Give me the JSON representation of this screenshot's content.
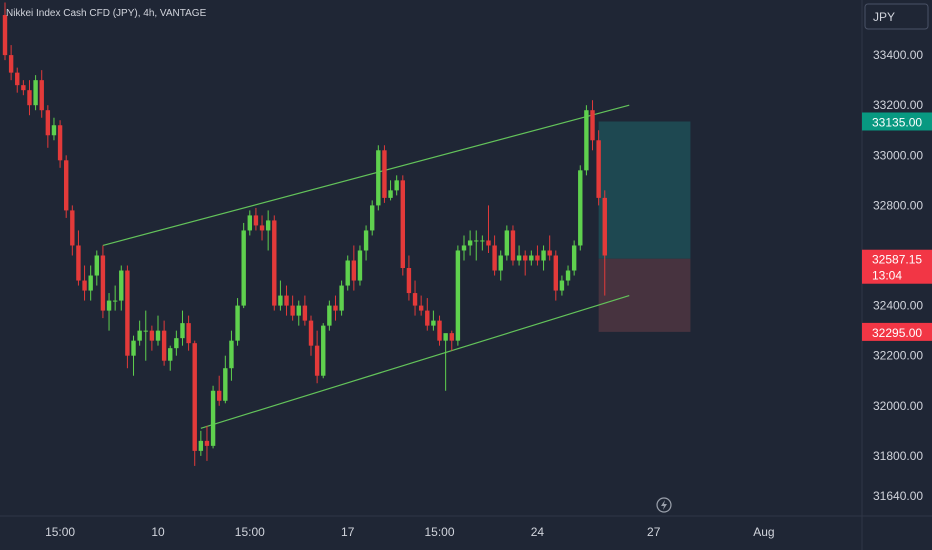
{
  "header": {
    "title": "Nikkei Index Cash CFD (JPY), 4h, VANTAGE"
  },
  "currency_button": "JPY",
  "colors": {
    "background": "#1f2635",
    "up": "#5fd14e",
    "down": "#e33a3a",
    "channel": "#63c35a",
    "target_zone": "#1f4a53",
    "stop_zone": "#4a3440",
    "tag_green": "#089981",
    "tag_red": "#f23645"
  },
  "chart_data": {
    "type": "candlestick",
    "ylim": [
      31560,
      33620
    ],
    "y_ticks": [
      33400,
      33200,
      33000,
      32800,
      32600,
      32400,
      32200,
      32000,
      31800,
      31640
    ],
    "y_tick_labels": [
      "33400.00",
      "33200.00",
      "33000.00",
      "32800.00",
      "32400.00",
      "32200.00",
      "32000.00",
      "31800.00",
      "31640.00"
    ],
    "y_tick_values": [
      33400,
      33200,
      33000,
      32800,
      32400,
      32200,
      32000,
      31800,
      31640
    ],
    "x_labels": [
      {
        "label": "15:00",
        "index": 9
      },
      {
        "label": "10",
        "index": 25
      },
      {
        "label": "15:00",
        "index": 40
      },
      {
        "label": "17",
        "index": 56
      },
      {
        "label": "15:00",
        "index": 71
      },
      {
        "label": "24",
        "index": 87
      },
      {
        "label": "27",
        "index": 106
      },
      {
        "label": "Aug",
        "index": 124
      }
    ],
    "candles": [
      [
        33560,
        33610,
        33380,
        33400
      ],
      [
        33400,
        33440,
        33300,
        33330
      ],
      [
        33330,
        33350,
        33250,
        33280
      ],
      [
        33280,
        33300,
        33240,
        33260
      ],
      [
        33260,
        33300,
        33160,
        33200
      ],
      [
        33200,
        33320,
        33180,
        33300
      ],
      [
        33300,
        33340,
        33150,
        33180
      ],
      [
        33180,
        33200,
        33030,
        33080
      ],
      [
        33080,
        33150,
        33060,
        33120
      ],
      [
        33120,
        33140,
        32950,
        32980
      ],
      [
        32980,
        33000,
        32750,
        32780
      ],
      [
        32780,
        32800,
        32600,
        32640
      ],
      [
        32640,
        32700,
        32480,
        32500
      ],
      [
        32500,
        32560,
        32420,
        32460
      ],
      [
        32460,
        32560,
        32420,
        32520
      ],
      [
        32520,
        32620,
        32480,
        32600
      ],
      [
        32600,
        32640,
        32350,
        32380
      ],
      [
        32380,
        32450,
        32300,
        32420
      ],
      [
        32420,
        32480,
        32380,
        32420
      ],
      [
        32420,
        32560,
        32380,
        32540
      ],
      [
        32540,
        32560,
        32150,
        32200
      ],
      [
        32200,
        32280,
        32120,
        32260
      ],
      [
        32260,
        32340,
        32240,
        32300
      ],
      [
        32300,
        32380,
        32180,
        32300
      ],
      [
        32300,
        32320,
        32220,
        32260
      ],
      [
        32260,
        32360,
        32240,
        32300
      ],
      [
        32300,
        32340,
        32160,
        32180
      ],
      [
        32180,
        32240,
        32140,
        32230
      ],
      [
        32230,
        32300,
        32200,
        32270
      ],
      [
        32270,
        32380,
        32240,
        32330
      ],
      [
        32330,
        32360,
        32220,
        32250
      ],
      [
        32250,
        32260,
        31760,
        31820
      ],
      [
        31820,
        31900,
        31800,
        31860
      ],
      [
        31860,
        31920,
        31780,
        31840
      ],
      [
        31840,
        32080,
        31830,
        32060
      ],
      [
        32060,
        32120,
        32000,
        32020
      ],
      [
        32020,
        32200,
        32010,
        32150
      ],
      [
        32150,
        32300,
        32100,
        32260
      ],
      [
        32260,
        32430,
        32240,
        32400
      ],
      [
        32400,
        32730,
        32390,
        32700
      ],
      [
        32700,
        32780,
        32680,
        32760
      ],
      [
        32760,
        32790,
        32700,
        32720
      ],
      [
        32720,
        32760,
        32660,
        32700
      ],
      [
        32700,
        32780,
        32620,
        32740
      ],
      [
        32740,
        32760,
        32380,
        32400
      ],
      [
        32400,
        32500,
        32380,
        32440
      ],
      [
        32440,
        32480,
        32360,
        32400
      ],
      [
        32400,
        32440,
        32340,
        32360
      ],
      [
        32360,
        32420,
        32320,
        32400
      ],
      [
        32400,
        32440,
        32320,
        32340
      ],
      [
        32340,
        32360,
        32200,
        32240
      ],
      [
        32240,
        32300,
        32090,
        32120
      ],
      [
        32120,
        32330,
        32110,
        32320
      ],
      [
        32320,
        32420,
        32300,
        32400
      ],
      [
        32400,
        32440,
        32340,
        32380
      ],
      [
        32380,
        32500,
        32360,
        32480
      ],
      [
        32480,
        32600,
        32460,
        32580
      ],
      [
        32580,
        32640,
        32460,
        32500
      ],
      [
        32500,
        32640,
        32480,
        32620
      ],
      [
        32620,
        32720,
        32580,
        32700
      ],
      [
        32700,
        32820,
        32680,
        32800
      ],
      [
        32800,
        33040,
        32780,
        33020
      ],
      [
        33020,
        33040,
        32810,
        32830
      ],
      [
        32830,
        32900,
        32820,
        32860
      ],
      [
        32860,
        32920,
        32840,
        32900
      ],
      [
        32900,
        32920,
        32520,
        32550
      ],
      [
        32550,
        32600,
        32420,
        32450
      ],
      [
        32450,
        32500,
        32360,
        32400
      ],
      [
        32400,
        32440,
        32360,
        32380
      ],
      [
        32380,
        32430,
        32300,
        32320
      ],
      [
        32320,
        32380,
        32300,
        32340
      ],
      [
        32340,
        32360,
        32240,
        32260
      ],
      [
        32260,
        32280,
        32060,
        32290
      ],
      [
        32290,
        32300,
        32220,
        32260
      ],
      [
        32260,
        32640,
        32240,
        32620
      ],
      [
        32620,
        32680,
        32580,
        32640
      ],
      [
        32640,
        32700,
        32600,
        32660
      ],
      [
        32660,
        32700,
        32580,
        32660
      ],
      [
        32660,
        32680,
        32620,
        32660
      ],
      [
        32660,
        32800,
        32610,
        32640
      ],
      [
        32640,
        32680,
        32520,
        32540
      ],
      [
        32540,
        32620,
        32500,
        32600
      ],
      [
        32600,
        32720,
        32580,
        32700
      ],
      [
        32700,
        32720,
        32560,
        32580
      ],
      [
        32580,
        32640,
        32560,
        32600
      ],
      [
        32600,
        32620,
        32520,
        32580
      ],
      [
        32580,
        32620,
        32560,
        32600
      ],
      [
        32600,
        32640,
        32560,
        32580
      ],
      [
        32580,
        32640,
        32540,
        32620
      ],
      [
        32620,
        32680,
        32580,
        32600
      ],
      [
        32600,
        32620,
        32420,
        32460
      ],
      [
        32460,
        32520,
        32440,
        32500
      ],
      [
        32500,
        32560,
        32480,
        32540
      ],
      [
        32540,
        32660,
        32520,
        32640
      ],
      [
        32640,
        32960,
        32620,
        32940
      ],
      [
        32940,
        33200,
        32920,
        33180
      ],
      [
        33180,
        33220,
        33020,
        33060
      ],
      [
        33060,
        33100,
        32800,
        32830
      ],
      [
        32830,
        32860,
        32440,
        32600
      ]
    ],
    "channel": {
      "upper": {
        "from": {
          "index": 16,
          "value": 32640
        },
        "to": {
          "index": 102,
          "value": 33200
        }
      },
      "lower": {
        "from": {
          "index": 32,
          "value": 31910
        },
        "to": {
          "index": 102,
          "value": 32440
        }
      }
    },
    "position": {
      "start_index": 97,
      "end_index": 112,
      "target": 33135,
      "entry": 32587.15,
      "stop": 32295
    },
    "price_tags": [
      {
        "label": "33135.00",
        "value": 33135,
        "color": "#089981"
      },
      {
        "label": "32587.15",
        "sub": "13:04",
        "value": 32587.15,
        "color": "#f23645"
      },
      {
        "label": "32295.00",
        "value": 32295,
        "color": "#f23645"
      }
    ]
  }
}
